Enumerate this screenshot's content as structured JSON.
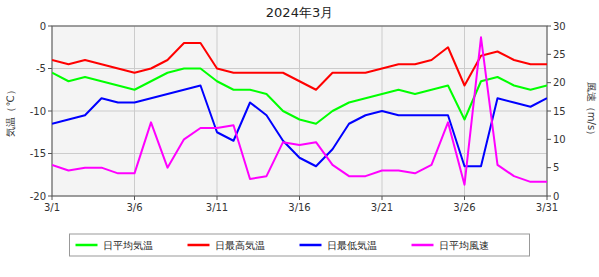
{
  "chart_data": {
    "type": "line",
    "title": "2024年3月",
    "x": [
      1,
      2,
      3,
      4,
      5,
      6,
      7,
      8,
      9,
      10,
      11,
      12,
      13,
      14,
      15,
      16,
      17,
      18,
      19,
      20,
      21,
      22,
      23,
      24,
      25,
      26,
      27,
      28,
      29,
      30,
      31
    ],
    "xlim": [
      1,
      31
    ],
    "xticks": [
      {
        "value": 1,
        "label": "3/1"
      },
      {
        "value": 6,
        "label": "3/6"
      },
      {
        "value": 11,
        "label": "3/11"
      },
      {
        "value": 16,
        "label": "3/16"
      },
      {
        "value": 21,
        "label": "3/21"
      },
      {
        "value": 26,
        "label": "3/26"
      },
      {
        "value": 31,
        "label": "3/31"
      }
    ],
    "ylim": [
      -20,
      0
    ],
    "yticks": [
      0,
      -5,
      -10,
      -15,
      -20
    ],
    "y2lim": [
      0,
      30
    ],
    "y2ticks": [
      0,
      5,
      10,
      15,
      20,
      25,
      30
    ],
    "ylabel": "気温（℃）",
    "y2label": "風速（m/s）",
    "grid": true,
    "legend": "bottom",
    "series": [
      {
        "name": "日平均気温",
        "color": "#00ff00",
        "values": [
          -5.5,
          -6.5,
          -6.0,
          -6.5,
          -7.0,
          -7.5,
          -6.5,
          -5.5,
          -5.0,
          -5.0,
          -6.5,
          -7.5,
          -7.5,
          -8.0,
          -10.0,
          -11.0,
          -11.5,
          -10.0,
          -9.0,
          -8.5,
          -8.0,
          -7.5,
          -8.0,
          -7.5,
          -7.0,
          -11.0,
          -6.5,
          -6.0,
          -7.0,
          -7.5,
          -7.0
        ]
      },
      {
        "name": "日最高気温",
        "color": "#ff0000",
        "values": [
          -4.0,
          -4.5,
          -4.0,
          -4.5,
          -5.0,
          -5.5,
          -5.0,
          -4.0,
          -2.0,
          -2.0,
          -5.0,
          -5.5,
          -5.5,
          -5.5,
          -5.5,
          -6.5,
          -7.5,
          -5.5,
          -5.5,
          -5.5,
          -5.0,
          -4.5,
          -4.5,
          -4.0,
          -2.5,
          -7.0,
          -3.5,
          -3.0,
          -4.0,
          -4.5,
          -4.5
        ]
      },
      {
        "name": "日最低気温",
        "color": "#0000ff",
        "values": [
          -11.5,
          -11.0,
          -10.5,
          -8.5,
          -9.0,
          -9.0,
          -8.5,
          -8.0,
          -7.5,
          -7.0,
          -12.5,
          -13.5,
          -9.0,
          -10.5,
          -13.5,
          -15.5,
          -16.5,
          -14.5,
          -11.5,
          -10.5,
          -10.0,
          -10.5,
          -10.5,
          -10.5,
          -10.5,
          -16.5,
          -16.5,
          -8.5,
          -9.0,
          -9.5,
          -8.5
        ]
      },
      {
        "name": "日平均風速",
        "color": "#ff00ff",
        "axis": "y2",
        "values": [
          5.5,
          4.5,
          5.0,
          5.0,
          4.0,
          4.0,
          13.0,
          5.0,
          10.0,
          12.0,
          12.0,
          12.5,
          3.0,
          3.5,
          9.5,
          9.0,
          9.5,
          5.5,
          3.5,
          3.5,
          4.5,
          4.5,
          4.0,
          5.5,
          13.0,
          2.0,
          28.0,
          5.5,
          3.5,
          2.5,
          2.5
        ]
      }
    ]
  }
}
